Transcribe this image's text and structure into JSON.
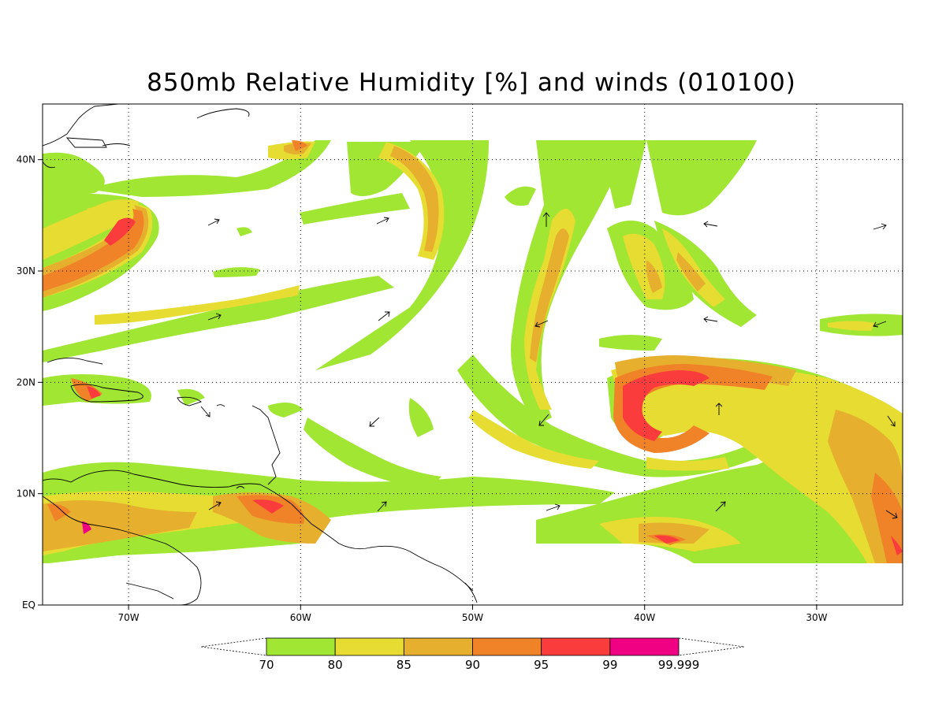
{
  "title": "850mb Relative Humidity [%] and winds (010100)",
  "map": {
    "lon_range": [
      -75,
      -25
    ],
    "lat_range": [
      0,
      45
    ],
    "lon_ticks": [
      {
        "value": -70,
        "label": "70W"
      },
      {
        "value": -60,
        "label": "60W"
      },
      {
        "value": -50,
        "label": "50W"
      },
      {
        "value": -40,
        "label": "40W"
      },
      {
        "value": -30,
        "label": "30W"
      }
    ],
    "lat_ticks": [
      {
        "value": 0,
        "label": "EQ"
      },
      {
        "value": 10,
        "label": "10N"
      },
      {
        "value": 20,
        "label": "20N"
      },
      {
        "value": 30,
        "label": "30N"
      },
      {
        "value": 40,
        "label": "40N"
      }
    ],
    "grid": true
  },
  "colorbar": {
    "colors": [
      "#a0e632",
      "#e6dc32",
      "#e6af2d",
      "#f08228",
      "#fa3c3c",
      "#f00082"
    ],
    "labels": [
      "70",
      "80",
      "85",
      "90",
      "95",
      "99",
      "99.999"
    ]
  },
  "colors": {
    "rh_70": "#a0e632",
    "rh_80": "#e6dc32",
    "rh_85": "#e6af2d",
    "rh_90": "#f08228",
    "rh_95": "#fa3c3c",
    "rh_99": "#f00082"
  }
}
